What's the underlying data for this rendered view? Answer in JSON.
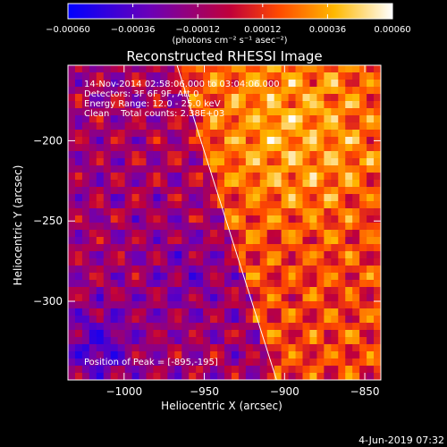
{
  "chart_data": {
    "type": "heatmap",
    "title": "Reconstructed RHESSI Image",
    "xlabel": "Heliocentric X (arcsec)",
    "ylabel": "Heliocentric Y (arcsec)",
    "xlim": [
      -1035,
      -840
    ],
    "ylim": [
      -349,
      -153
    ],
    "x_ticks": [
      {
        "value": -1000,
        "label": "−1000"
      },
      {
        "value": -950,
        "label": "−950"
      },
      {
        "value": -900,
        "label": "−900"
      },
      {
        "value": -850,
        "label": "−850"
      }
    ],
    "y_ticks": [
      {
        "value": -200,
        "label": "−200"
      },
      {
        "value": -250,
        "label": "−250"
      },
      {
        "value": -300,
        "label": "−300"
      }
    ],
    "colorbar": {
      "range": [
        -0.0006,
        0.0006
      ],
      "ticks": [
        {
          "value": -0.0006,
          "label": "−0.00060"
        },
        {
          "value": -0.00036,
          "label": "−0.00036"
        },
        {
          "value": -0.00012,
          "label": "−0.00012"
        },
        {
          "value": 0.00012,
          "label": "0.00012"
        },
        {
          "value": 0.00036,
          "label": "0.00036"
        },
        {
          "value": 0.0006,
          "label": "0.00060"
        }
      ],
      "units_label": "(photons cm⁻² s⁻¹ asec⁻²)",
      "colors": [
        "#0000ff",
        "#6a00b8",
        "#c0003a",
        "#ff4a00",
        "#ffb800",
        "#ffffff"
      ]
    },
    "annotations": [
      "14-Nov-2014 02:58:06.000 to 03:04:06.000",
      "Detectors: 3F 6F 9F, Att 0",
      "Energy Range: 12.0 - 25.0 keV",
      "Clean    Total counts: 2.38E+03"
    ],
    "peak_label": "Position of Peak = [-895,-195]",
    "peak": [
      -895,
      -195
    ],
    "limb_line": {
      "x": [
        -967,
        -905
      ],
      "y": [
        -153,
        -349
      ]
    },
    "grid": false
  },
  "footer": {
    "date": "4-Jun-2019 07:32"
  }
}
